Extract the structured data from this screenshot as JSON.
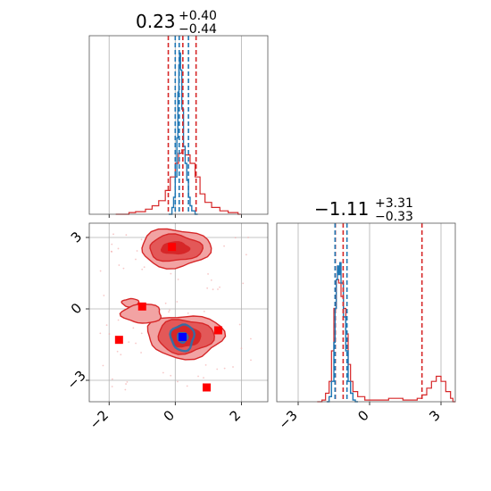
{
  "colors": {
    "red": "#d62728",
    "blue": "#1f77b4",
    "red_light": "#f2a3a3",
    "red_mid": "#e35858",
    "marker_red": "#ff0000",
    "marker_blue": "#0000ff"
  },
  "chart_data": [
    {
      "type": "histogram",
      "panel": "top-left",
      "parameter": "x",
      "title": {
        "median": "0.23",
        "plus": "+0.40",
        "minus": "−0.44"
      },
      "xlim": [
        -2.6,
        2.8
      ],
      "ticks": [
        -2,
        0,
        2
      ],
      "grid": true,
      "red_quantiles": [
        -0.21,
        0.23,
        0.63
      ],
      "blue_quantiles": [
        0.0,
        0.12,
        0.4
      ],
      "red_bins": [
        [
          -1.8,
          0.0
        ],
        [
          -1.4,
          0.01
        ],
        [
          -1.2,
          0.015
        ],
        [
          -0.9,
          0.03
        ],
        [
          -0.7,
          0.05
        ],
        [
          -0.5,
          0.08
        ],
        [
          -0.3,
          0.14
        ],
        [
          -0.15,
          0.22
        ],
        [
          0.0,
          0.3
        ],
        [
          0.1,
          0.36
        ],
        [
          0.2,
          0.38
        ],
        [
          0.3,
          0.35
        ],
        [
          0.45,
          0.3
        ],
        [
          0.6,
          0.22
        ],
        [
          0.75,
          0.12
        ],
        [
          0.9,
          0.07
        ],
        [
          1.1,
          0.04
        ],
        [
          1.35,
          0.02
        ],
        [
          1.6,
          0.01
        ],
        [
          1.9,
          0.0
        ]
      ],
      "blue_bins": [
        [
          -0.2,
          0.0
        ],
        [
          -0.1,
          0.04
        ],
        [
          -0.05,
          0.1
        ],
        [
          0.0,
          0.22
        ],
        [
          0.05,
          0.45
        ],
        [
          0.08,
          0.72
        ],
        [
          0.11,
          0.88
        ],
        [
          0.13,
          0.95
        ],
        [
          0.16,
          0.85
        ],
        [
          0.2,
          0.62
        ],
        [
          0.25,
          0.4
        ],
        [
          0.3,
          0.3
        ],
        [
          0.35,
          0.2
        ],
        [
          0.4,
          0.1
        ],
        [
          0.45,
          0.05
        ],
        [
          0.5,
          0.02
        ],
        [
          0.6,
          0.0
        ]
      ]
    },
    {
      "type": "contour2d",
      "panel": "bottom-left",
      "parameters": [
        "x",
        "y"
      ],
      "xlim": [
        -2.6,
        2.8
      ],
      "ylim": [
        -3.9,
        3.6
      ],
      "xticks": [
        -2,
        0,
        2
      ],
      "yticks": [
        -3,
        0,
        3
      ],
      "grid": true,
      "red_modes": [
        {
          "cx": 0.0,
          "cy": 2.55,
          "levels": [
            [
              0.42,
              0.25
            ],
            [
              0.8,
              0.55
            ],
            [
              1.05,
              0.8
            ]
          ]
        },
        {
          "cx": 0.3,
          "cy": -1.15,
          "levels": [
            [
              0.45,
              0.45
            ],
            [
              0.85,
              0.7
            ],
            [
              1.15,
              0.9
            ]
          ]
        }
      ],
      "red_fragments": [
        {
          "cx": -1.35,
          "cy": 0.25,
          "rx": 0.25,
          "ry": 0.18
        },
        {
          "cx": -1.0,
          "cy": -0.2,
          "rx": 0.6,
          "ry": 0.4
        }
      ],
      "blue_mode": {
        "cx": 0.22,
        "cy": -1.2,
        "levels": [
          [
            0.15,
            0.2
          ],
          [
            0.35,
            0.55
          ]
        ]
      },
      "red_markers": [
        [
          -0.1,
          2.6
        ],
        [
          -1.7,
          -1.3
        ],
        [
          -1.0,
          0.1
        ],
        [
          1.3,
          -0.9
        ],
        [
          0.95,
          -3.3
        ]
      ],
      "blue_markers": [
        [
          0.22,
          -1.18
        ]
      ]
    },
    {
      "type": "histogram",
      "panel": "bottom-right",
      "parameter": "y",
      "title": {
        "median": "−1.11",
        "plus": "+3.31",
        "minus": "−0.33"
      },
      "xlim": [
        -3.9,
        3.6
      ],
      "ticks": [
        -3,
        0,
        3
      ],
      "grid": true,
      "red_quantiles": [
        -1.44,
        -1.11,
        2.2
      ],
      "blue_quantiles": [
        -1.45,
        -0.95
      ],
      "red_bins": [
        [
          -2.2,
          0.0
        ],
        [
          -2.0,
          0.01
        ],
        [
          -1.85,
          0.05
        ],
        [
          -1.7,
          0.12
        ],
        [
          -1.6,
          0.3
        ],
        [
          -1.5,
          0.55
        ],
        [
          -1.4,
          0.72
        ],
        [
          -1.3,
          0.7
        ],
        [
          -1.2,
          0.62
        ],
        [
          -1.1,
          0.55
        ],
        [
          -1.0,
          0.4
        ],
        [
          -0.9,
          0.22
        ],
        [
          -0.8,
          0.12
        ],
        [
          -0.7,
          0.06
        ],
        [
          -0.5,
          0.03
        ],
        [
          -0.2,
          0.01
        ],
        [
          0.2,
          0.01
        ],
        [
          0.8,
          0.02
        ],
        [
          1.4,
          0.01
        ],
        [
          2.0,
          0.02
        ],
        [
          2.2,
          0.04
        ],
        [
          2.4,
          0.08
        ],
        [
          2.6,
          0.12
        ],
        [
          2.8,
          0.15
        ],
        [
          3.0,
          0.12
        ],
        [
          3.2,
          0.06
        ],
        [
          3.4,
          0.02
        ],
        [
          3.5,
          0.0
        ]
      ],
      "blue_bins": [
        [
          -1.8,
          0.0
        ],
        [
          -1.7,
          0.03
        ],
        [
          -1.6,
          0.12
        ],
        [
          -1.5,
          0.35
        ],
        [
          -1.45,
          0.55
        ],
        [
          -1.4,
          0.72
        ],
        [
          -1.35,
          0.8
        ],
        [
          -1.3,
          0.75
        ],
        [
          -1.25,
          0.82
        ],
        [
          -1.2,
          0.7
        ],
        [
          -1.1,
          0.5
        ],
        [
          -1.0,
          0.3
        ],
        [
          -0.9,
          0.12
        ],
        [
          -0.8,
          0.05
        ],
        [
          -0.7,
          0.01
        ],
        [
          -0.6,
          0.0
        ]
      ]
    }
  ]
}
